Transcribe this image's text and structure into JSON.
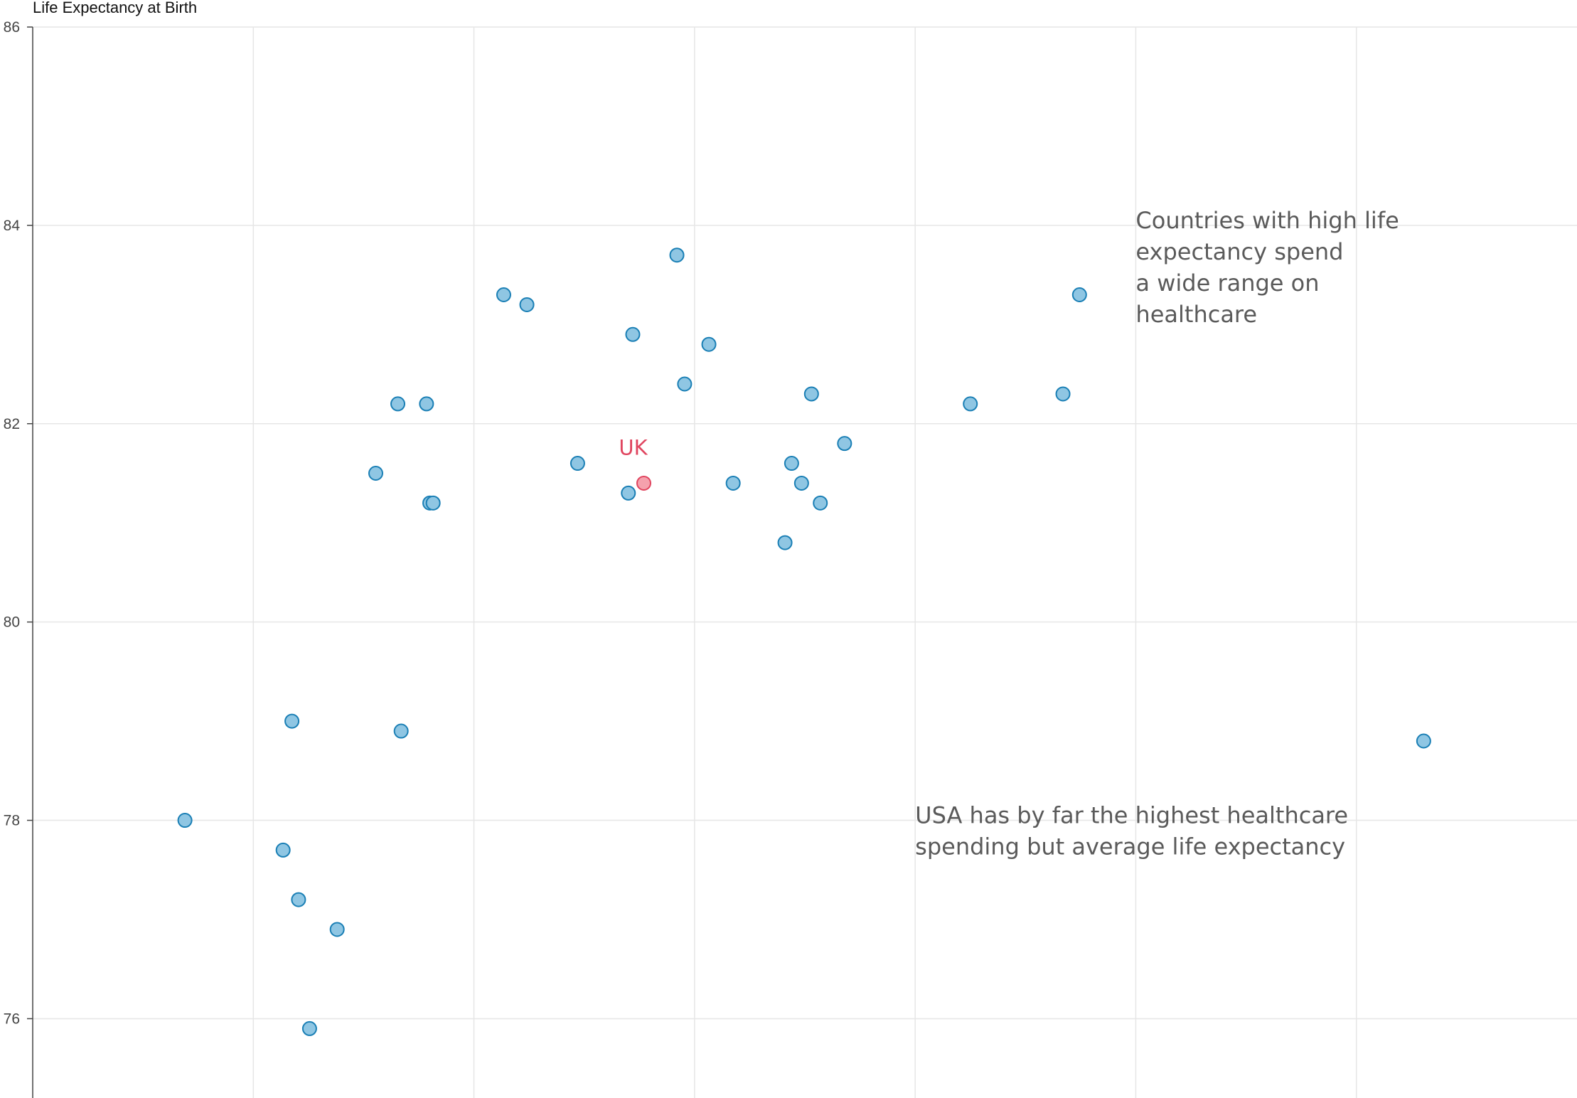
{
  "chart_data": {
    "type": "scatter",
    "ylabel": "Life Expectancy at Birth",
    "ylim": [
      75.2,
      86
    ],
    "yticks": [
      76,
      78,
      80,
      82,
      84,
      86
    ],
    "xlim": [
      0,
      7000
    ],
    "x_gridlines": [
      1000,
      2000,
      3000,
      4000,
      5000,
      6000
    ],
    "x_tick_labels_visible": false,
    "grid": true,
    "point_color": "#8fc6e3",
    "point_stroke": "#1a7fb5",
    "highlight_color": "#f5a1ad",
    "highlight_stroke": "#e0455f",
    "highlight_text_color": "#e0455f",
    "points": [
      {
        "x": 690,
        "y": 78.0
      },
      {
        "x": 1135,
        "y": 77.7
      },
      {
        "x": 1175,
        "y": 79.0
      },
      {
        "x": 1205,
        "y": 77.2
      },
      {
        "x": 1255,
        "y": 75.9
      },
      {
        "x": 1380,
        "y": 76.9
      },
      {
        "x": 1555,
        "y": 81.5
      },
      {
        "x": 1655,
        "y": 82.2
      },
      {
        "x": 1670,
        "y": 78.9
      },
      {
        "x": 1785,
        "y": 82.2
      },
      {
        "x": 1800,
        "y": 81.2
      },
      {
        "x": 1815,
        "y": 81.2
      },
      {
        "x": 2135,
        "y": 83.3
      },
      {
        "x": 2240,
        "y": 83.2
      },
      {
        "x": 2470,
        "y": 81.6
      },
      {
        "x": 2700,
        "y": 81.3
      },
      {
        "x": 2720,
        "y": 82.9
      },
      {
        "x": 2920,
        "y": 83.7
      },
      {
        "x": 2955,
        "y": 82.4
      },
      {
        "x": 3065,
        "y": 82.8
      },
      {
        "x": 3175,
        "y": 81.4
      },
      {
        "x": 3410,
        "y": 80.8
      },
      {
        "x": 3440,
        "y": 81.6
      },
      {
        "x": 3485,
        "y": 81.4
      },
      {
        "x": 3530,
        "y": 82.3
      },
      {
        "x": 3570,
        "y": 81.2
      },
      {
        "x": 3680,
        "y": 81.8
      },
      {
        "x": 4250,
        "y": 82.2
      },
      {
        "x": 4670,
        "y": 82.3
      },
      {
        "x": 4745,
        "y": 83.3
      },
      {
        "x": 6305,
        "y": 78.8
      }
    ],
    "highlight": {
      "label": "UK",
      "x": 2770,
      "y": 81.4
    },
    "annotations": [
      {
        "lines": [
          "Countries with high life",
          "expectancy spend",
          "a wide range on",
          "healthcare"
        ],
        "x": 5000,
        "y": 84.0
      },
      {
        "lines": [
          "USA has by far the highest healthcare",
          "spending but average life expectancy"
        ],
        "x": 4000,
        "y": 78.0
      }
    ]
  }
}
